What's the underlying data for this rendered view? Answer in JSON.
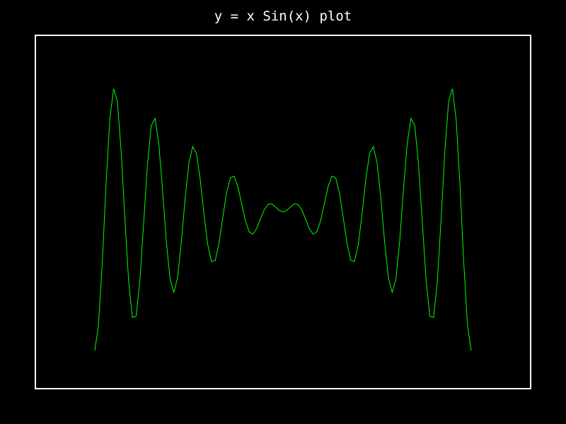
{
  "chart_data": {
    "type": "line",
    "title": "y = x Sin(x) plot",
    "xlabel": "",
    "ylabel": "",
    "function": "x*sin(x)",
    "xlim": [
      -39.27,
      39.27
    ],
    "ylim": [
      -38.0,
      38.0
    ],
    "grid": false,
    "series": [
      {
        "function": "x*sin(x)",
        "x_range": [
          -29.85,
          29.85
        ],
        "sample_count": 101,
        "color": "#00ff00"
      }
    ]
  },
  "colors": {
    "background": "#000000",
    "frame": "#ffffff",
    "title": "#ffffff",
    "line": "#00ff00"
  }
}
